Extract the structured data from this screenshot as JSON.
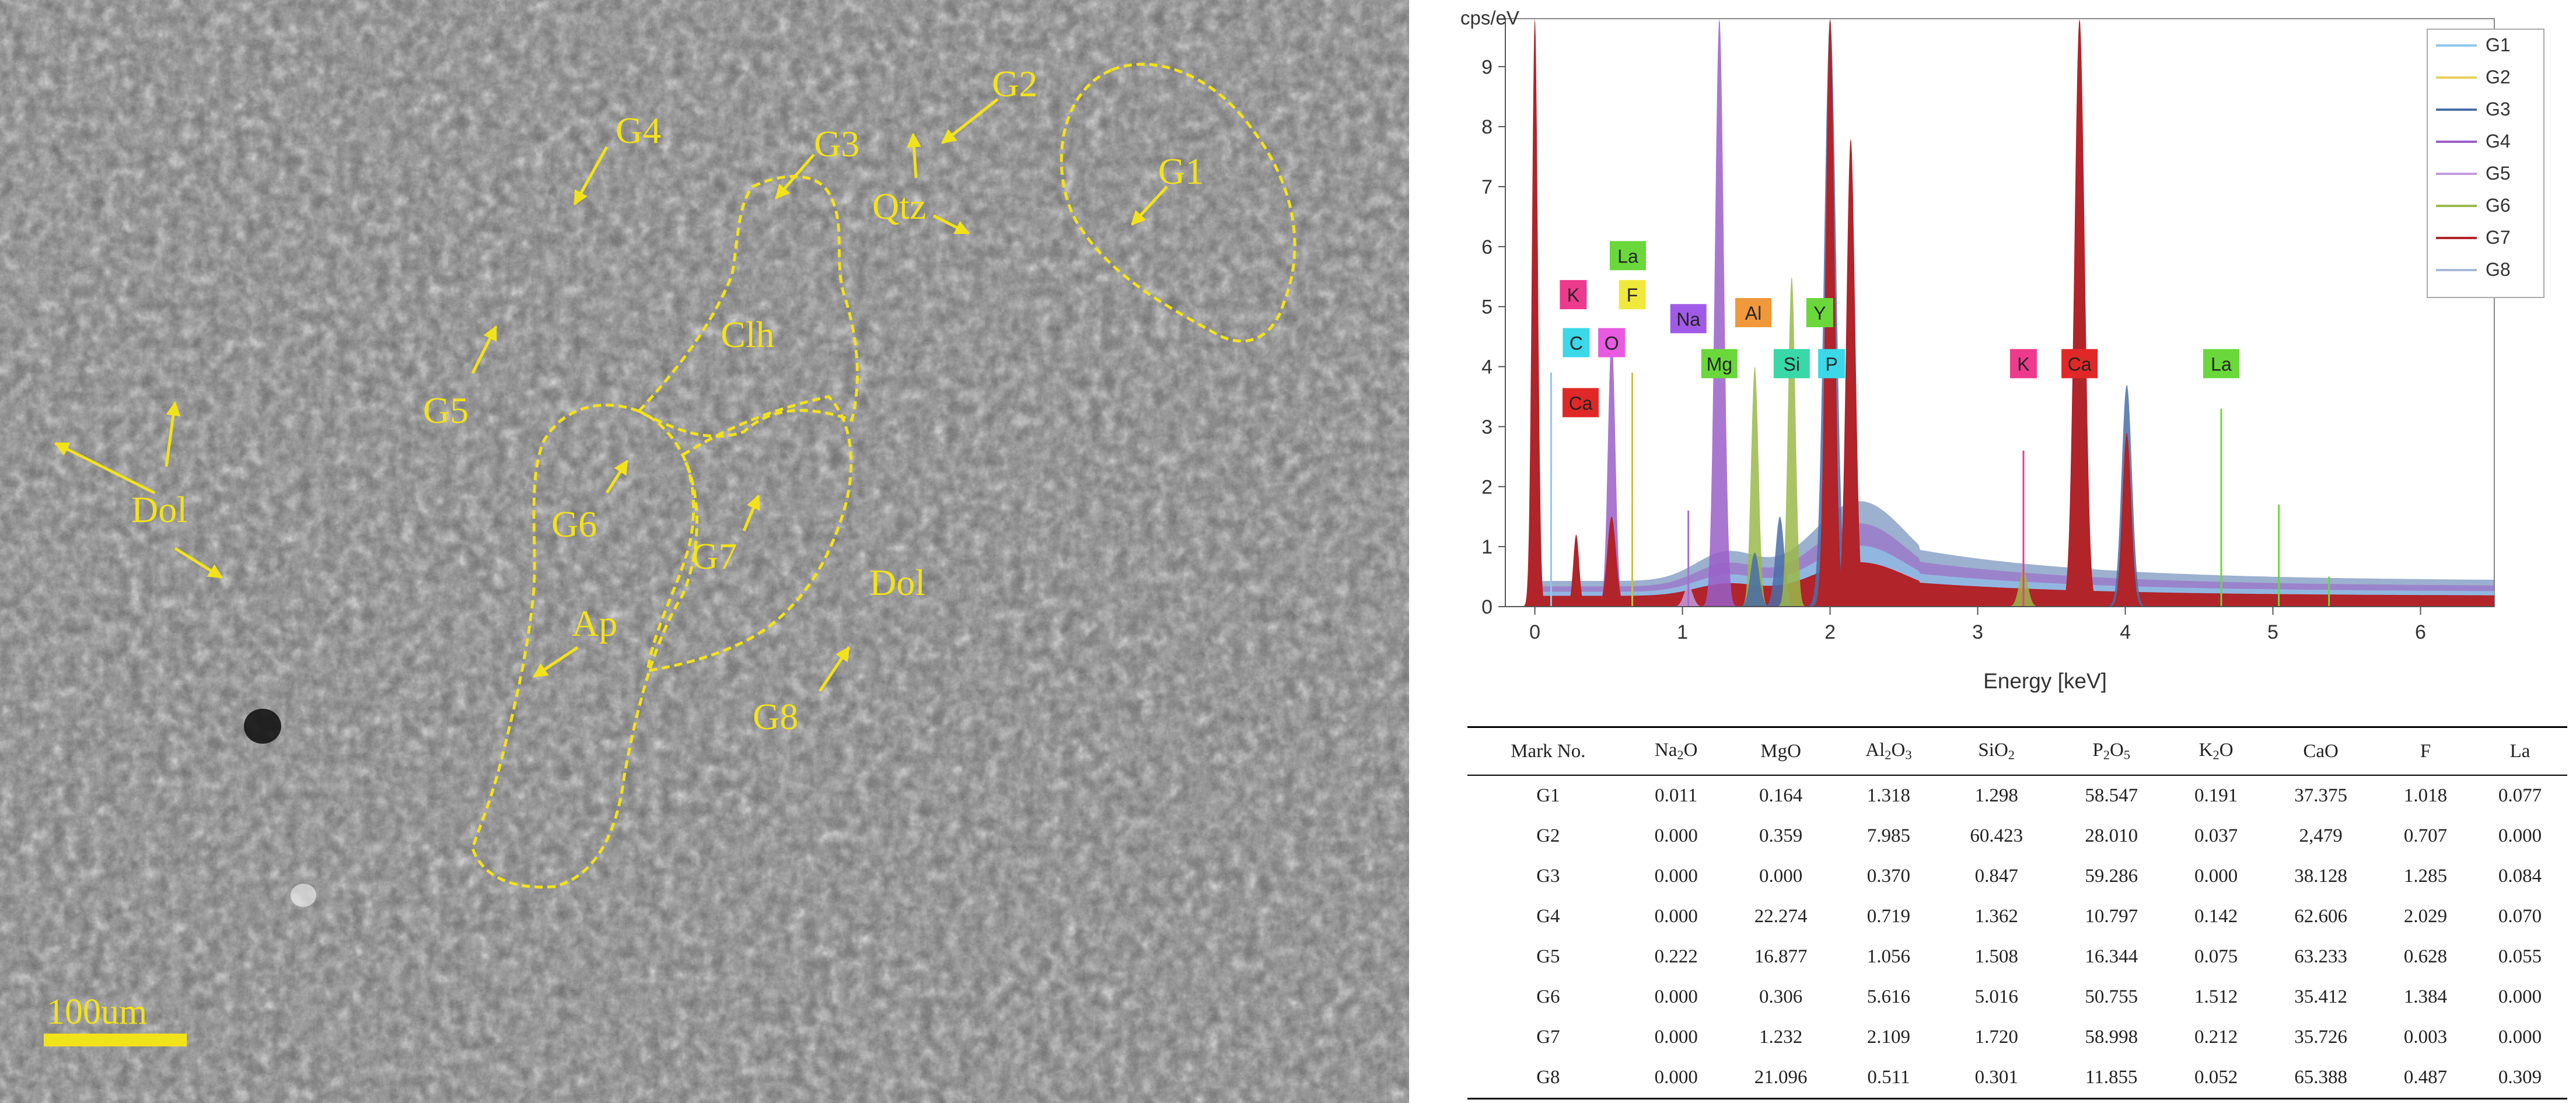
{
  "sem": {
    "labels": [
      "G4",
      "G3",
      "G2",
      "G1",
      "Qtz",
      "Clh",
      "G5",
      "Dol",
      "G6",
      "G7",
      "Ap",
      "Dol",
      "G8"
    ],
    "scale_bar": "100um"
  },
  "chart_data": {
    "type": "area",
    "ylabel": "cps/eV",
    "xlabel": "Energy [keV]",
    "xlim": [
      -0.2,
      6.5
    ],
    "ylim": [
      0,
      9.8
    ],
    "xticks": [
      0,
      1,
      2,
      3,
      4,
      5,
      6
    ],
    "yticks": [
      0,
      1,
      2,
      3,
      4,
      5,
      6,
      7,
      8,
      9
    ],
    "legend": {
      "placement": "top-right",
      "entries": [
        "G1",
        "G2",
        "G3",
        "G4",
        "G5",
        "G6",
        "G7",
        "G8"
      ]
    },
    "series": [
      {
        "name": "G1",
        "color": "#8ec8e8"
      },
      {
        "name": "G2",
        "color": "#e8d060"
      },
      {
        "name": "G3",
        "color": "#4a6fa8"
      },
      {
        "name": "G4",
        "color": "#9a5fc8"
      },
      {
        "name": "G5",
        "color": "#c49ae0"
      },
      {
        "name": "G6",
        "color": "#9ab84a"
      },
      {
        "name": "G7",
        "color": "#b0242a"
      },
      {
        "name": "G8",
        "color": "#a8b8d8"
      }
    ],
    "peaks": [
      {
        "x": 0.0,
        "h": 9.8,
        "w": 0.02,
        "series": "G7"
      },
      {
        "x": 0.11,
        "h": 3.9,
        "w": 0.005,
        "series": "G1"
      },
      {
        "x": 0.28,
        "h": 1.2,
        "w": 0.02,
        "series": "G7"
      },
      {
        "x": 0.52,
        "h": 4.5,
        "w": 0.025,
        "series": "G4"
      },
      {
        "x": 0.52,
        "h": 1.5,
        "w": 0.03,
        "series": "G7"
      },
      {
        "x": 1.04,
        "h": 0.35,
        "w": 0.03,
        "series": "G5"
      },
      {
        "x": 1.25,
        "h": 9.8,
        "w": 0.03,
        "series": "G4"
      },
      {
        "x": 1.49,
        "h": 4.0,
        "w": 0.025,
        "series": "G6"
      },
      {
        "x": 1.49,
        "h": 0.9,
        "w": 0.03,
        "series": "G3"
      },
      {
        "x": 1.66,
        "h": 1.5,
        "w": 0.03,
        "series": "G3"
      },
      {
        "x": 1.74,
        "h": 5.5,
        "w": 0.025,
        "series": "G6"
      },
      {
        "x": 2.0,
        "h": 9.8,
        "w": 0.04,
        "series": "G3"
      },
      {
        "x": 2.0,
        "h": 9.8,
        "w": 0.03,
        "series": "G7"
      },
      {
        "x": 2.14,
        "h": 7.8,
        "w": 0.03,
        "series": "G7"
      },
      {
        "x": 3.31,
        "h": 0.6,
        "w": 0.03,
        "series": "G6"
      },
      {
        "x": 3.69,
        "h": 9.8,
        "w": 0.035,
        "series": "G7"
      },
      {
        "x": 4.01,
        "h": 3.7,
        "w": 0.035,
        "series": "G3"
      },
      {
        "x": 4.01,
        "h": 2.9,
        "w": 0.03,
        "series": "G7"
      }
    ],
    "annotations": [
      {
        "text": "K",
        "x": 0.26,
        "y": 5.2,
        "color": "#ee3a8c"
      },
      {
        "text": "C",
        "x": 0.28,
        "y": 4.4,
        "color": "#3ad8e8"
      },
      {
        "text": "Ca",
        "x": 0.31,
        "y": 3.4,
        "color": "#e02828"
      },
      {
        "text": "O",
        "x": 0.52,
        "y": 4.4,
        "color": "#e85ae0"
      },
      {
        "text": "La",
        "x": 0.63,
        "y": 5.85,
        "color": "#6ad83a"
      },
      {
        "text": "F",
        "x": 0.66,
        "y": 5.2,
        "color": "#f0e83a"
      },
      {
        "text": "Na",
        "x": 1.04,
        "y": 4.8,
        "color": "#a05ae8"
      },
      {
        "text": "Mg",
        "x": 1.25,
        "y": 4.05,
        "color": "#6ad83a"
      },
      {
        "text": "Al",
        "x": 1.48,
        "y": 4.9,
        "color": "#f0983a"
      },
      {
        "text": "Y",
        "x": 1.93,
        "y": 4.9,
        "color": "#6ad83a"
      },
      {
        "text": "Si",
        "x": 1.74,
        "y": 4.05,
        "color": "#3ad8a8"
      },
      {
        "text": "P",
        "x": 2.01,
        "y": 4.05,
        "color": "#3ad8e8"
      },
      {
        "text": "K",
        "x": 3.31,
        "y": 4.05,
        "color": "#ee3a8c"
      },
      {
        "text": "Ca",
        "x": 3.69,
        "y": 4.05,
        "color": "#e02828"
      },
      {
        "text": "La",
        "x": 4.65,
        "y": 4.05,
        "color": "#6ad83a"
      }
    ]
  },
  "table": {
    "headers": [
      "Mark No.",
      "Na₂O",
      "MgO",
      "Al₂O₃",
      "SiO₂",
      "P₂O₅",
      "K₂O",
      "CaO",
      "F",
      "La"
    ],
    "rows": [
      [
        "G1",
        "0.011",
        "0.164",
        "1.318",
        "1.298",
        "58.547",
        "0.191",
        "37.375",
        "1.018",
        "0.077"
      ],
      [
        "G2",
        "0.000",
        "0.359",
        "7.985",
        "60.423",
        "28.010",
        "0.037",
        "2,479",
        "0.707",
        "0.000"
      ],
      [
        "G3",
        "0.000",
        "0.000",
        "0.370",
        "0.847",
        "59.286",
        "0.000",
        "38.128",
        "1.285",
        "0.084"
      ],
      [
        "G4",
        "0.000",
        "22.274",
        "0.719",
        "1.362",
        "10.797",
        "0.142",
        "62.606",
        "2.029",
        "0.070"
      ],
      [
        "G5",
        "0.222",
        "16.877",
        "1.056",
        "1.508",
        "16.344",
        "0.075",
        "63.233",
        "0.628",
        "0.055"
      ],
      [
        "G6",
        "0.000",
        "0.306",
        "5.616",
        "5.016",
        "50.755",
        "1.512",
        "35.412",
        "1.384",
        "0.000"
      ],
      [
        "G7",
        "0.000",
        "1.232",
        "2.109",
        "1.720",
        "58.998",
        "0.212",
        "35.726",
        "0.003",
        "0.000"
      ],
      [
        "G8",
        "0.000",
        "21.096",
        "0.511",
        "0.301",
        "11.855",
        "0.052",
        "65.388",
        "0.487",
        "0.309"
      ]
    ]
  }
}
